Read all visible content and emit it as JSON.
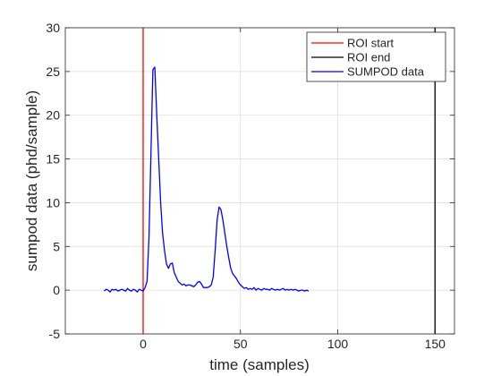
{
  "chart_data": {
    "type": "line",
    "title": "",
    "xlabel": "time (samples)",
    "ylabel": "sumpod data (phd/sample)",
    "xlim": [
      -40,
      160
    ],
    "ylim": [
      -5,
      30
    ],
    "xticks": [
      0,
      50,
      100,
      150
    ],
    "yticks": [
      -5,
      0,
      5,
      10,
      15,
      20,
      25,
      30
    ],
    "grid": true,
    "legend_position": "top-right",
    "vlines": [
      {
        "name": "ROI start",
        "x": 0,
        "color": "#ff0000"
      },
      {
        "name": "ROI end",
        "x": 150,
        "color": "#000000"
      }
    ],
    "series": [
      {
        "name": "SUMPOD data",
        "color": "#0000ff",
        "x": [
          -20,
          -19,
          -18,
          -17,
          -16,
          -15,
          -14,
          -13,
          -12,
          -11,
          -10,
          -9,
          -8,
          -7,
          -6,
          -5,
          -4,
          -3,
          -2,
          -1,
          0,
          1,
          2,
          3,
          4,
          5,
          6,
          7,
          8,
          9,
          10,
          11,
          12,
          13,
          14,
          15,
          16,
          17,
          18,
          19,
          20,
          21,
          22,
          23,
          24,
          25,
          26,
          27,
          28,
          29,
          30,
          31,
          32,
          33,
          34,
          35,
          36,
          37,
          38,
          39,
          40,
          41,
          42,
          43,
          44,
          45,
          46,
          47,
          48,
          49,
          50,
          51,
          52,
          53,
          54,
          55,
          56,
          57,
          58,
          59,
          60,
          61,
          62,
          63,
          64,
          65,
          66,
          67,
          68,
          69,
          70,
          71,
          72,
          73,
          74,
          75,
          76,
          77,
          78,
          79,
          80,
          81,
          82,
          83,
          84,
          85
        ],
        "y": [
          -0.1,
          0.1,
          0.0,
          -0.2,
          0.1,
          0.0,
          0.1,
          -0.1,
          0.0,
          0.1,
          0.0,
          -0.1,
          0.2,
          0.0,
          -0.1,
          0.1,
          0.0,
          -0.2,
          0.1,
          0.0,
          -0.1,
          0.3,
          1.0,
          6.0,
          15.5,
          25.2,
          25.5,
          20.0,
          15.0,
          10.0,
          6.5,
          4.5,
          3.0,
          2.5,
          3.0,
          3.1,
          2.0,
          1.5,
          1.0,
          0.8,
          0.6,
          0.7,
          0.5,
          0.6,
          0.6,
          0.5,
          0.4,
          0.6,
          0.9,
          1.0,
          0.7,
          0.3,
          0.3,
          0.3,
          0.4,
          0.6,
          1.5,
          4.5,
          8.0,
          9.5,
          9.2,
          8.0,
          6.5,
          5.0,
          3.7,
          2.5,
          1.9,
          1.6,
          1.3,
          0.9,
          0.6,
          0.4,
          0.2,
          0.3,
          0.1,
          0.2,
          0.1,
          0.3,
          0.0,
          0.2,
          0.1,
          0.0,
          0.2,
          0.1,
          0.1,
          0.0,
          0.2,
          0.1,
          0.0,
          0.1,
          0.0,
          0.1,
          0.2,
          0.0,
          0.1,
          0.0,
          0.1,
          0.0,
          0.1,
          0.0,
          -0.1,
          0.0,
          0.0,
          -0.1,
          0.0,
          -0.1
        ]
      }
    ]
  }
}
